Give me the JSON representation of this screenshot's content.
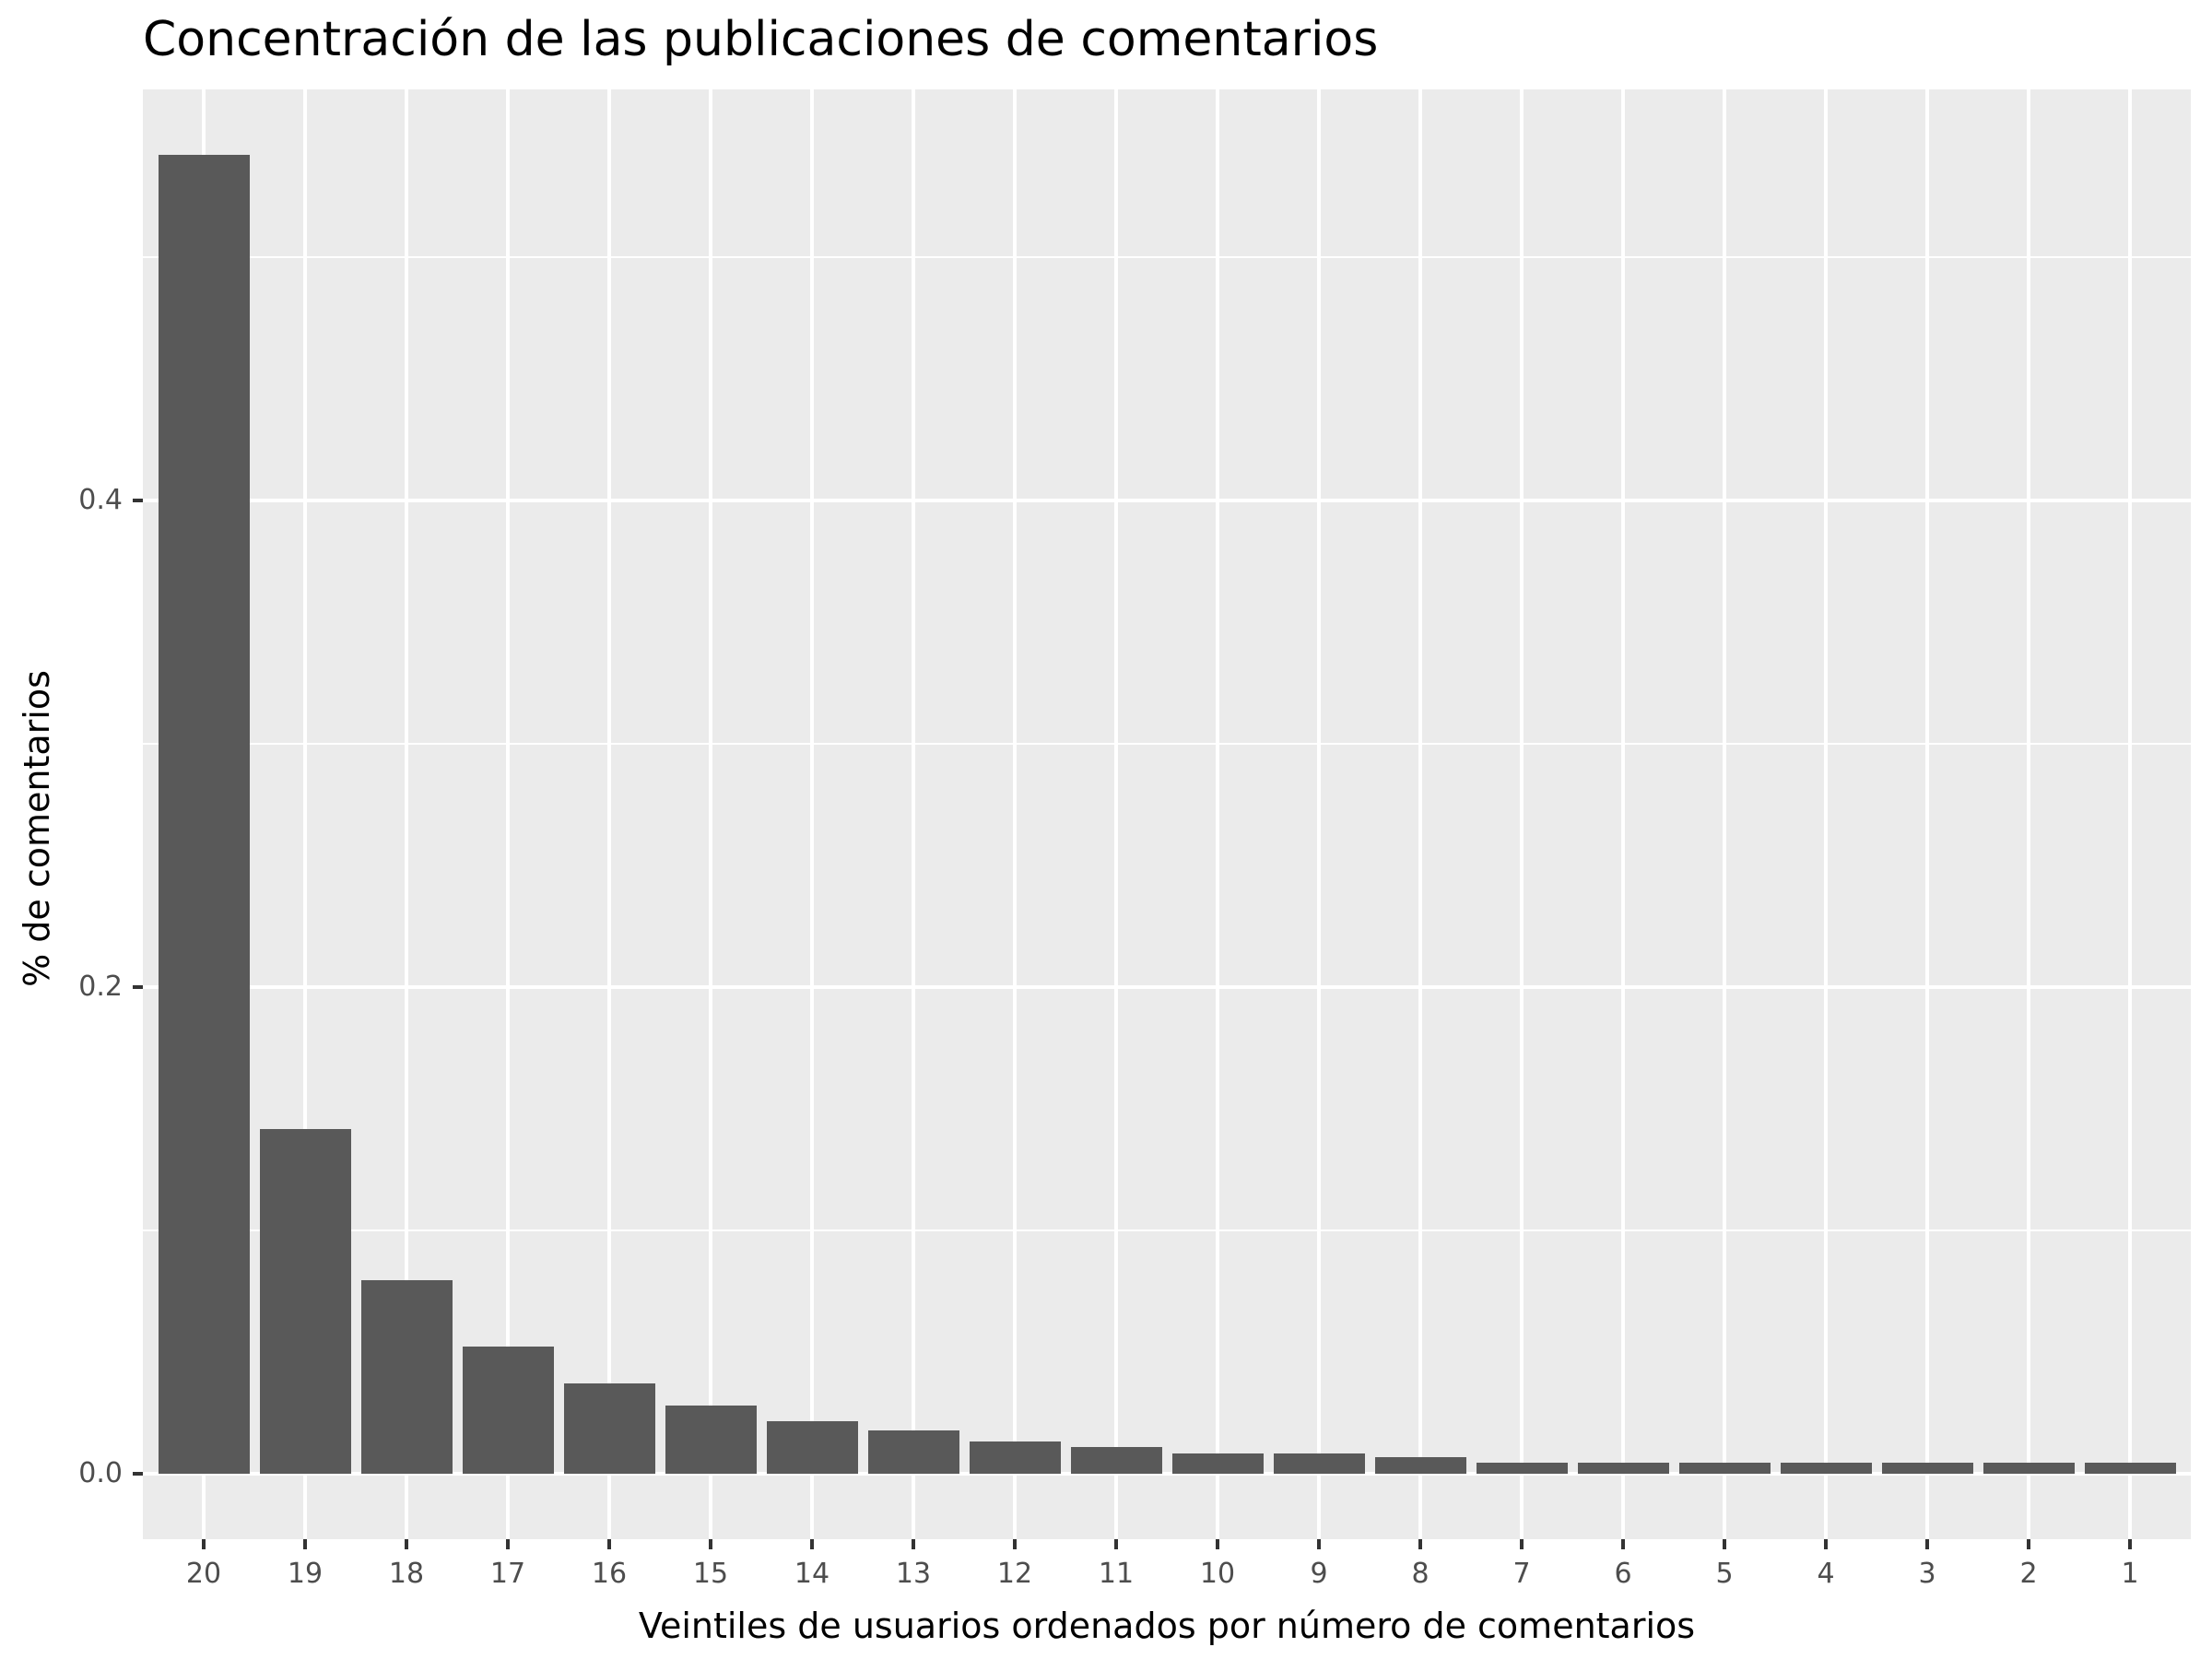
{
  "chart_data": {
    "type": "bar",
    "title": "Concentración de las publicaciones de comentarios",
    "xlabel": "Veintiles de usuarios ordenados por número de comentarios",
    "ylabel": "% de comentarios",
    "categories": [
      "20",
      "19",
      "18",
      "17",
      "16",
      "15",
      "14",
      "13",
      "12",
      "11",
      "10",
      "9",
      "8",
      "7",
      "6",
      "5",
      "4",
      "3",
      "2",
      "1"
    ],
    "values": [
      0.542,
      0.1417,
      0.0795,
      0.0523,
      0.0371,
      0.028,
      0.0216,
      0.0178,
      0.013,
      0.011,
      0.0081,
      0.0081,
      0.0068,
      0.0045,
      0.0045,
      0.0045,
      0.0045,
      0.0045,
      0.0045,
      0.0045
    ],
    "ylim": [
      -0.027,
      0.569
    ],
    "yticks": [
      0.0,
      0.2,
      0.4
    ],
    "ytick_labels": [
      "0.0",
      "0.2",
      "0.4"
    ],
    "minor_gridlines": [
      0.1,
      0.3,
      0.5
    ],
    "grid": true,
    "legend": "none",
    "colors": {
      "bar": "#595959",
      "panel": "#ebebeb",
      "grid": "#ffffff"
    }
  }
}
